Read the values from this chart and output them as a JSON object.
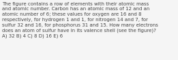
{
  "text": "The figure contains a row of elements with their atomic mass\nand atomic number. Carbon has an atomic mass of 12 and an\natomic number of 6; these values for oxygen are 16 and 8\nrespectively, for hydrogen 1 and 1, for nitrogen 14 and 7, for\nsulfur 32 and 16, for phosphorus 31 and 15. How many electrons\ndoes an atom of sulfur have in its valence shell (see the figure)?\nA) 32 B) 4 C) 8 D) 16 E) 6",
  "background_color": "#f5f5f5",
  "text_color": "#444444",
  "font_size": 5.0,
  "font_family": "DejaVu Sans",
  "linespacing": 1.35
}
